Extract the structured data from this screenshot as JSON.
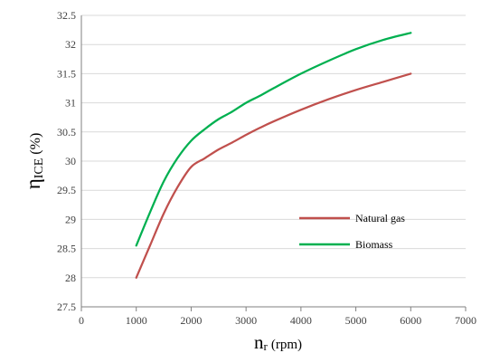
{
  "chart_data": {
    "type": "line",
    "title": "",
    "xlabel": {
      "main": "n",
      "sub": "r",
      "unit": "(rpm)"
    },
    "ylabel": {
      "main": "η",
      "sub": "ICE",
      "unit": "(%)"
    },
    "xlim": [
      0,
      7000
    ],
    "ylim": [
      27.5,
      32.5
    ],
    "xticks": [
      0,
      1000,
      2000,
      3000,
      4000,
      5000,
      6000,
      7000
    ],
    "yticks": [
      27.5,
      28,
      28.5,
      29,
      29.5,
      30,
      30.5,
      31,
      31.5,
      32,
      32.5
    ],
    "grid": "horizontal",
    "legend_position": "lower-right",
    "series": [
      {
        "name": "Natural gas",
        "color": "#c0504d",
        "x": [
          1000,
          1250,
          1500,
          1750,
          2000,
          2250,
          2500,
          2750,
          3000,
          3250,
          3500,
          4000,
          4500,
          5000,
          5500,
          6000
        ],
        "y": [
          28.0,
          28.55,
          29.1,
          29.55,
          29.9,
          30.05,
          30.2,
          30.32,
          30.45,
          30.57,
          30.68,
          30.88,
          31.06,
          31.22,
          31.36,
          31.5
        ]
      },
      {
        "name": "Biomass",
        "color": "#00b050",
        "x": [
          1000,
          1250,
          1500,
          1750,
          2000,
          2250,
          2500,
          2750,
          3000,
          3250,
          3500,
          4000,
          4500,
          5000,
          5500,
          6000
        ],
        "y": [
          28.55,
          29.12,
          29.65,
          30.05,
          30.35,
          30.55,
          30.72,
          30.85,
          31.0,
          31.12,
          31.25,
          31.5,
          31.72,
          31.92,
          32.08,
          32.2
        ]
      }
    ]
  }
}
